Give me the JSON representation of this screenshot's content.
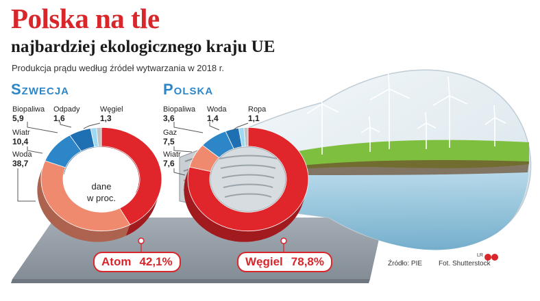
{
  "header": {
    "title": "Polska na tle",
    "subtitle": "najbardziej ekologicznego kraju UE",
    "note": "Produkcja prądu według źródeł wytwarzania w 2018 r."
  },
  "center_label": [
    "dane",
    "w proc."
  ],
  "source": "Źródło: PIE",
  "photo": "Fot. Shutterstock",
  "logo": "LR",
  "colors": {
    "accent": "#d8262b",
    "blue": "#2c86c8",
    "salmon": "#f08a6e",
    "light_blue": "#9ed8f3"
  },
  "chart_data": [
    {
      "type": "pie",
      "country": "Szwecja",
      "unit": "%",
      "slices": [
        {
          "name": "Atom",
          "value": 42.1,
          "color": "#e0262b"
        },
        {
          "name": "Woda",
          "value": 38.7,
          "color": "#f08a6e"
        },
        {
          "name": "Wiatr",
          "value": 10.4,
          "color": "#2c86c8"
        },
        {
          "name": "Biopaliwa",
          "value": 5.9,
          "color": "#1f6fb3"
        },
        {
          "name": "Odpady",
          "value": 1.6,
          "color": "#9ed8f3"
        },
        {
          "name": "Węgiel",
          "value": 1.3,
          "color": "#bfc3c6"
        }
      ],
      "labels": [
        {
          "name": "Biopaliwa",
          "value": "5,9"
        },
        {
          "name": "Odpady",
          "value": "1,6"
        },
        {
          "name": "Węgiel",
          "value": "1,3"
        },
        {
          "name": "Wiatr",
          "value": "10,4"
        },
        {
          "name": "Woda",
          "value": "38,7"
        }
      ],
      "highlight": {
        "name": "Atom",
        "value": "42,1%"
      }
    },
    {
      "type": "pie",
      "country": "Polska",
      "unit": "%",
      "slices": [
        {
          "name": "Węgiel",
          "value": 78.8,
          "color": "#e0262b"
        },
        {
          "name": "Wiatr",
          "value": 7.6,
          "color": "#f08a6e"
        },
        {
          "name": "Gaz",
          "value": 7.5,
          "color": "#2c86c8"
        },
        {
          "name": "Biopaliwa",
          "value": 3.6,
          "color": "#1f6fb3"
        },
        {
          "name": "Woda",
          "value": 1.4,
          "color": "#9ed8f3"
        },
        {
          "name": "Ropa",
          "value": 1.1,
          "color": "#bfc3c6"
        }
      ],
      "labels": [
        {
          "name": "Biopaliwa",
          "value": "3,6"
        },
        {
          "name": "Woda",
          "value": "1,4"
        },
        {
          "name": "Ropa",
          "value": "1,1"
        },
        {
          "name": "Gaz",
          "value": "7,5"
        },
        {
          "name": "Wiatr",
          "value": "7,6"
        }
      ],
      "highlight": {
        "name": "Węgiel",
        "value": "78,8%"
      }
    }
  ]
}
